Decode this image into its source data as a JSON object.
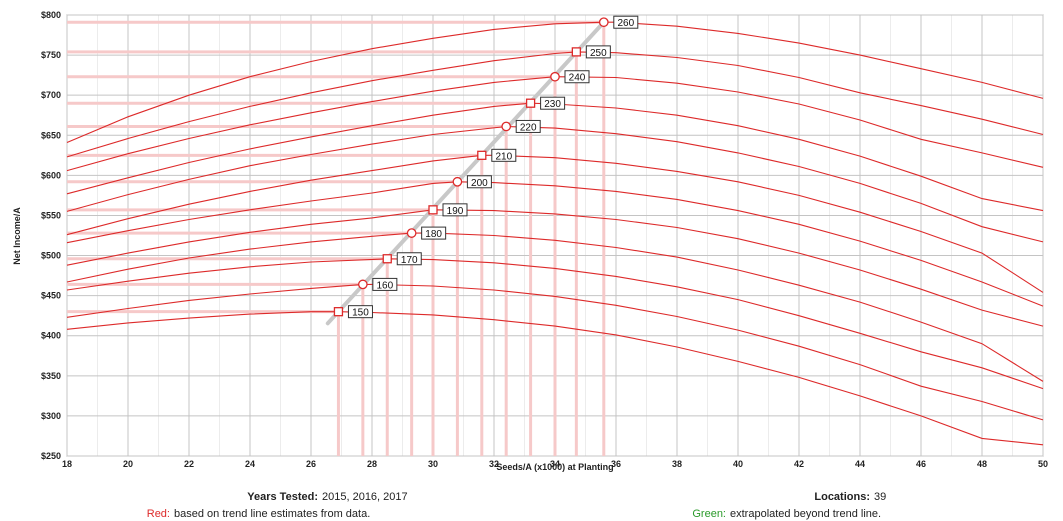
{
  "chart_data": {
    "type": "line",
    "title": "",
    "xlabel": "Seeds/A (x1000) at Planting",
    "ylabel": "Net Income/A",
    "xlim": [
      18,
      50
    ],
    "ylim": [
      250,
      800
    ],
    "x_ticks": [
      18,
      20,
      22,
      24,
      26,
      28,
      30,
      32,
      34,
      36,
      38,
      40,
      42,
      44,
      46,
      48,
      50
    ],
    "x_tick_labels": [
      "18",
      "20",
      "22",
      "24",
      "26",
      "28",
      "30",
      "32",
      "34",
      "36",
      "38",
      "40",
      "42",
      "44",
      "46",
      "48",
      "50"
    ],
    "y_ticks": [
      250,
      300,
      350,
      400,
      450,
      500,
      550,
      600,
      650,
      700,
      750,
      800
    ],
    "y_tick_labels": [
      "$250",
      "$300",
      "$350",
      "$400",
      "$450",
      "$500",
      "$550",
      "$600",
      "$650",
      "$700",
      "$750",
      "$800"
    ],
    "grid": true,
    "line_color": "#dd2a2a",
    "optimum_line_color": "#c8c8c8",
    "series": [
      {
        "label": "150",
        "optimum": {
          "x": 26.9,
          "y": 430
        },
        "points": [
          [
            18,
            408
          ],
          [
            20,
            416
          ],
          [
            22,
            422
          ],
          [
            24,
            427
          ],
          [
            26,
            430
          ],
          [
            26.9,
            430
          ],
          [
            28,
            429
          ],
          [
            30,
            426
          ],
          [
            32,
            420
          ],
          [
            34,
            412
          ],
          [
            36,
            401
          ],
          [
            38,
            386
          ],
          [
            40,
            368
          ],
          [
            42,
            348
          ],
          [
            44,
            325
          ],
          [
            46,
            300
          ],
          [
            48,
            272
          ],
          [
            50,
            264
          ]
        ]
      },
      {
        "label": "160",
        "optimum": {
          "x": 27.7,
          "y": 464
        },
        "points": [
          [
            18,
            423
          ],
          [
            20,
            434
          ],
          [
            22,
            444
          ],
          [
            24,
            452
          ],
          [
            26,
            459
          ],
          [
            27.7,
            464
          ],
          [
            28,
            464
          ],
          [
            30,
            462
          ],
          [
            32,
            457
          ],
          [
            34,
            449
          ],
          [
            36,
            438
          ],
          [
            38,
            424
          ],
          [
            40,
            407
          ],
          [
            42,
            387
          ],
          [
            44,
            364
          ],
          [
            46,
            337
          ],
          [
            48,
            318
          ],
          [
            50,
            295
          ]
        ]
      },
      {
        "label": "170",
        "optimum": {
          "x": 28.5,
          "y": 496
        },
        "points": [
          [
            18,
            457
          ],
          [
            20,
            468
          ],
          [
            22,
            478
          ],
          [
            24,
            486
          ],
          [
            26,
            492
          ],
          [
            28.5,
            496
          ],
          [
            30,
            495
          ],
          [
            32,
            491
          ],
          [
            34,
            484
          ],
          [
            36,
            474
          ],
          [
            38,
            461
          ],
          [
            40,
            445
          ],
          [
            42,
            425
          ],
          [
            44,
            403
          ],
          [
            46,
            380
          ],
          [
            48,
            360
          ],
          [
            50,
            334
          ]
        ]
      },
      {
        "label": "180",
        "optimum": {
          "x": 29.3,
          "y": 528
        },
        "points": [
          [
            18,
            467
          ],
          [
            20,
            483
          ],
          [
            22,
            497
          ],
          [
            24,
            508
          ],
          [
            26,
            517
          ],
          [
            28,
            524
          ],
          [
            29.3,
            528
          ],
          [
            30,
            528
          ],
          [
            32,
            525
          ],
          [
            34,
            519
          ],
          [
            36,
            510
          ],
          [
            38,
            498
          ],
          [
            40,
            482
          ],
          [
            42,
            463
          ],
          [
            44,
            442
          ],
          [
            46,
            417
          ],
          [
            48,
            390
          ],
          [
            50,
            343
          ]
        ]
      },
      {
        "label": "190",
        "optimum": {
          "x": 30.0,
          "y": 557
        },
        "points": [
          [
            18,
            488
          ],
          [
            20,
            503
          ],
          [
            22,
            517
          ],
          [
            24,
            529
          ],
          [
            26,
            539
          ],
          [
            28,
            547
          ],
          [
            30,
            557
          ],
          [
            32,
            556
          ],
          [
            34,
            552
          ],
          [
            36,
            545
          ],
          [
            38,
            535
          ],
          [
            40,
            521
          ],
          [
            42,
            503
          ],
          [
            44,
            482
          ],
          [
            46,
            458
          ],
          [
            48,
            432
          ],
          [
            50,
            412
          ]
        ]
      },
      {
        "label": "200",
        "optimum": {
          "x": 30.8,
          "y": 592
        },
        "points": [
          [
            18,
            516
          ],
          [
            20,
            531
          ],
          [
            22,
            545
          ],
          [
            24,
            557
          ],
          [
            26,
            568
          ],
          [
            28,
            578
          ],
          [
            30,
            590
          ],
          [
            30.8,
            592
          ],
          [
            32,
            591
          ],
          [
            34,
            587
          ],
          [
            36,
            580
          ],
          [
            38,
            570
          ],
          [
            40,
            556
          ],
          [
            42,
            539
          ],
          [
            44,
            518
          ],
          [
            46,
            494
          ],
          [
            48,
            467
          ],
          [
            50,
            437
          ]
        ]
      },
      {
        "label": "210",
        "optimum": {
          "x": 31.6,
          "y": 625
        },
        "points": [
          [
            18,
            526
          ],
          [
            20,
            546
          ],
          [
            22,
            564
          ],
          [
            24,
            580
          ],
          [
            26,
            594
          ],
          [
            28,
            606
          ],
          [
            30,
            618
          ],
          [
            31.6,
            625
          ],
          [
            32,
            625
          ],
          [
            34,
            622
          ],
          [
            36,
            615
          ],
          [
            38,
            605
          ],
          [
            40,
            592
          ],
          [
            42,
            575
          ],
          [
            44,
            554
          ],
          [
            46,
            530
          ],
          [
            48,
            503
          ],
          [
            50,
            454
          ]
        ]
      },
      {
        "label": "220",
        "optimum": {
          "x": 32.4,
          "y": 661
        },
        "points": [
          [
            18,
            555
          ],
          [
            20,
            576
          ],
          [
            22,
            595
          ],
          [
            24,
            612
          ],
          [
            26,
            626
          ],
          [
            28,
            639
          ],
          [
            30,
            651
          ],
          [
            32.4,
            661
          ],
          [
            34,
            659
          ],
          [
            36,
            652
          ],
          [
            38,
            642
          ],
          [
            40,
            628
          ],
          [
            42,
            611
          ],
          [
            44,
            590
          ],
          [
            46,
            565
          ],
          [
            48,
            536
          ],
          [
            50,
            517
          ]
        ]
      },
      {
        "label": "230",
        "optimum": {
          "x": 33.2,
          "y": 690
        },
        "points": [
          [
            18,
            577
          ],
          [
            20,
            597
          ],
          [
            22,
            616
          ],
          [
            24,
            633
          ],
          [
            26,
            648
          ],
          [
            28,
            662
          ],
          [
            30,
            675
          ],
          [
            32,
            686
          ],
          [
            33.2,
            690
          ],
          [
            34,
            689
          ],
          [
            36,
            684
          ],
          [
            38,
            675
          ],
          [
            40,
            662
          ],
          [
            42,
            645
          ],
          [
            44,
            624
          ],
          [
            46,
            599
          ],
          [
            48,
            571
          ],
          [
            50,
            556
          ]
        ]
      },
      {
        "label": "240",
        "optimum": {
          "x": 34.0,
          "y": 723
        },
        "points": [
          [
            18,
            606
          ],
          [
            20,
            627
          ],
          [
            22,
            646
          ],
          [
            24,
            663
          ],
          [
            26,
            678
          ],
          [
            28,
            692
          ],
          [
            30,
            705
          ],
          [
            32,
            716
          ],
          [
            34,
            723
          ],
          [
            36,
            722
          ],
          [
            38,
            715
          ],
          [
            40,
            704
          ],
          [
            42,
            689
          ],
          [
            44,
            669
          ],
          [
            46,
            645
          ],
          [
            48,
            628
          ],
          [
            50,
            610
          ]
        ]
      },
      {
        "label": "250",
        "optimum": {
          "x": 34.7,
          "y": 754
        },
        "points": [
          [
            18,
            623
          ],
          [
            20,
            646
          ],
          [
            22,
            667
          ],
          [
            24,
            686
          ],
          [
            26,
            703
          ],
          [
            28,
            718
          ],
          [
            30,
            731
          ],
          [
            32,
            743
          ],
          [
            34,
            752
          ],
          [
            34.7,
            754
          ],
          [
            36,
            753
          ],
          [
            38,
            747
          ],
          [
            40,
            737
          ],
          [
            42,
            722
          ],
          [
            44,
            703
          ],
          [
            46,
            687
          ],
          [
            48,
            670
          ],
          [
            50,
            651
          ]
        ]
      },
      {
        "label": "260",
        "optimum": {
          "x": 35.6,
          "y": 791
        },
        "points": [
          [
            18,
            641
          ],
          [
            20,
            673
          ],
          [
            22,
            700
          ],
          [
            24,
            723
          ],
          [
            26,
            742
          ],
          [
            28,
            758
          ],
          [
            30,
            771
          ],
          [
            32,
            782
          ],
          [
            34,
            789
          ],
          [
            35.6,
            791
          ],
          [
            36,
            791
          ],
          [
            38,
            786
          ],
          [
            40,
            777
          ],
          [
            42,
            765
          ],
          [
            44,
            750
          ],
          [
            46,
            733
          ],
          [
            48,
            716
          ],
          [
            50,
            696
          ]
        ]
      }
    ]
  },
  "footer": {
    "years_label": "Years Tested:",
    "years_value": "2015, 2016, 2017",
    "locations_label": "Locations:",
    "locations_value": "39",
    "red_label": "Red:",
    "red_text": "based on trend line estimates from data.",
    "green_label": "Green:",
    "green_text": "extrapolated beyond trend line.",
    "red_color": "#dd2a2a",
    "green_color": "#2a9a2a"
  }
}
